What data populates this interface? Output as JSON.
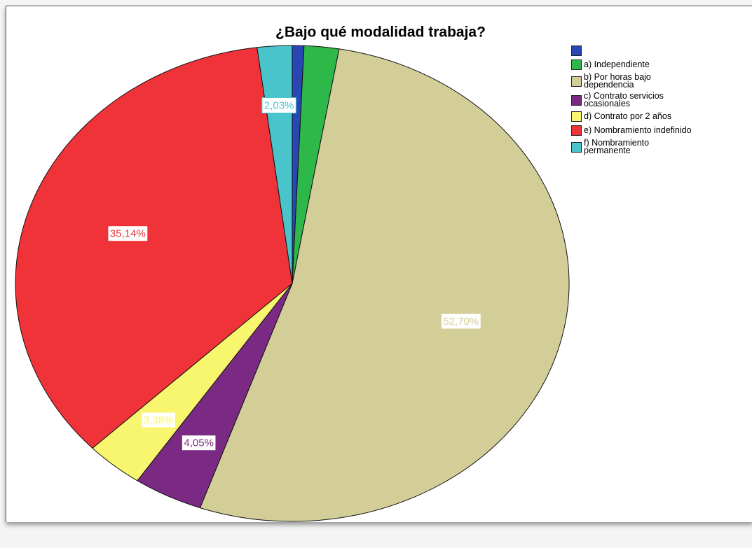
{
  "chart_data": {
    "type": "pie",
    "title": "¿Bajo qué modalidad trabaja?",
    "categories": [
      null,
      "a) Independiente",
      "b) Por horas bajo dependencia",
      "c) Contrato servicios ocasionales",
      "d) Contrato por 2 años",
      "e) Nombramiento indefinido",
      "f) Nombramiento permanente"
    ],
    "values": [
      0.68,
      2.03,
      52.7,
      4.05,
      3.38,
      35.14,
      2.03
    ],
    "value_labels": [
      null,
      null,
      "52,70%",
      "4,05%",
      "3,38%",
      "35,14%",
      "2,03%"
    ],
    "colors": [
      "#2846b4",
      "#2fb84a",
      "#d3ce98",
      "#7b2a83",
      "#f8f56e",
      "#ef3338",
      "#4ac4cb"
    ]
  }
}
